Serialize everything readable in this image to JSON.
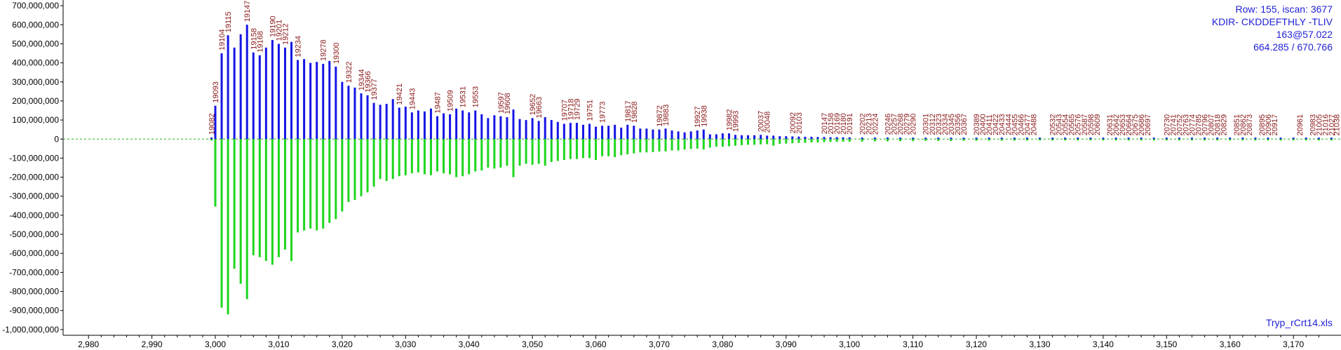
{
  "chart_data": {
    "type": "bar",
    "x_range": [
      2976,
      3177.5
    ],
    "y_range": [
      -1030000000,
      730000000
    ],
    "y_ticks": [
      700000000,
      600000000,
      500000000,
      400000000,
      300000000,
      200000000,
      100000000,
      0,
      -100000000,
      -200000000,
      -300000000,
      -400000000,
      -500000000,
      -600000000,
      -700000000,
      -800000000,
      -900000000,
      -1000000000
    ],
    "y_tick_labels": [
      "700,000,000",
      "600,000,000",
      "500,000,000",
      "400,000,000",
      "300,000,000",
      "200,000,000",
      "100,000,000",
      "0",
      "-100,000,000",
      "-200,000,000",
      "-300,000,000",
      "-400,000,000",
      "-500,000,000",
      "-600,000,000",
      "-700,000,000",
      "-800,000,000",
      "-900,000,000",
      "-1,000,000,000"
    ],
    "x_ticks": [
      2980,
      2990,
      3000,
      3010,
      3020,
      3030,
      3040,
      3050,
      3060,
      3070,
      3080,
      3090,
      3100,
      3110,
      3120,
      3130,
      3140,
      3150,
      3160,
      3170
    ],
    "x_tick_labels": [
      "2,980",
      "2,990",
      "3,000",
      "3,010",
      "3,020",
      "3,030",
      "3,040",
      "3,050",
      "3,060",
      "3,070",
      "3,080",
      "3,090",
      "3,100",
      "3,110",
      "3,120",
      "3,130",
      "3,140",
      "3,150",
      "3,160",
      "3,170"
    ],
    "colors": {
      "positive": "#1515e6",
      "negative": "#1ed61e",
      "baseline": "#22b022",
      "labels": "#8b1a1a",
      "info": "#1f1fd6"
    },
    "grid": false,
    "series": [
      {
        "name": "",
        "x": [
          2999.4,
          3000,
          3001,
          3002,
          3003,
          3004,
          3005,
          3006,
          3007,
          3008,
          3009,
          3010,
          3011,
          3012,
          3013,
          3014,
          3015,
          3016,
          3017,
          3018,
          3019,
          3020,
          3021,
          3022,
          3023,
          3024,
          3025,
          3026,
          3027,
          3028,
          3029,
          3030,
          3031,
          3032,
          3033,
          3034,
          3035,
          3036,
          3037,
          3038,
          3039,
          3040,
          3041,
          3042,
          3043,
          3044,
          3045,
          3046,
          3047,
          3048,
          3049,
          3050,
          3051,
          3052,
          3053,
          3054,
          3055,
          3056,
          3057,
          3058,
          3059,
          3060,
          3061,
          3062,
          3063,
          3064,
          3065,
          3066,
          3067,
          3068,
          3069,
          3070,
          3071,
          3072,
          3073,
          3074,
          3075,
          3076,
          3077,
          3078,
          3079,
          3080,
          3081,
          3082,
          3083,
          3084,
          3085,
          3086,
          3087,
          3088,
          3089,
          3090,
          3091,
          3092,
          3093,
          3094,
          3095,
          3096,
          3097,
          3098,
          3099,
          3100,
          3102,
          3104,
          3106,
          3108,
          3110,
          3112,
          3114,
          3116,
          3118,
          3120,
          3122,
          3124,
          3126,
          3128,
          3130,
          3132,
          3134,
          3136,
          3138,
          3140,
          3142,
          3144,
          3146,
          3148,
          3150,
          3152,
          3154,
          3156,
          3158,
          3160,
          3162,
          3164,
          3166,
          3168,
          3170,
          3172,
          3174,
          3176
        ],
        "y_pos": [
          8000000,
          175000000,
          450000000,
          545000000,
          480000000,
          550000000,
          600000000,
          455000000,
          440000000,
          480000000,
          520000000,
          500000000,
          480000000,
          510000000,
          415000000,
          420000000,
          400000000,
          405000000,
          395000000,
          410000000,
          380000000,
          300000000,
          280000000,
          270000000,
          240000000,
          230000000,
          190000000,
          180000000,
          185000000,
          210000000,
          165000000,
          170000000,
          140000000,
          150000000,
          145000000,
          160000000,
          120000000,
          135000000,
          130000000,
          160000000,
          150000000,
          140000000,
          150000000,
          130000000,
          110000000,
          125000000,
          120000000,
          115000000,
          155000000,
          105000000,
          100000000,
          110000000,
          95000000,
          115000000,
          100000000,
          90000000,
          80000000,
          85000000,
          85000000,
          75000000,
          80000000,
          65000000,
          70000000,
          70000000,
          75000000,
          60000000,
          75000000,
          70000000,
          55000000,
          55000000,
          50000000,
          50000000,
          55000000,
          45000000,
          40000000,
          35000000,
          40000000,
          45000000,
          50000000,
          25000000,
          25000000,
          30000000,
          30000000,
          22000000,
          20000000,
          20000000,
          20000000,
          22000000,
          18000000,
          18000000,
          15000000,
          15000000,
          14000000,
          13000000,
          12000000,
          12000000,
          11000000,
          11000000,
          10000000,
          10000000,
          9000000,
          9000000,
          8000000,
          8000000,
          8000000,
          7000000,
          7000000,
          7000000,
          6000000,
          6000000,
          6000000,
          6000000,
          5000000,
          5000000,
          5000000,
          5000000,
          4000000,
          4000000,
          4000000,
          4000000,
          4000000,
          4000000,
          3000000,
          3000000,
          3000000,
          3000000,
          3000000,
          3000000,
          3000000,
          3000000,
          3000000,
          3000000,
          3000000,
          3000000,
          3000000,
          3000000,
          3000000,
          3000000,
          3000000,
          3000000
        ],
        "y_neg": [
          -8000000,
          -355000000,
          -885000000,
          -920000000,
          -680000000,
          -760000000,
          -840000000,
          -610000000,
          -620000000,
          -640000000,
          -660000000,
          -620000000,
          -580000000,
          -640000000,
          -490000000,
          -480000000,
          -470000000,
          -480000000,
          -470000000,
          -440000000,
          -420000000,
          -380000000,
          -330000000,
          -320000000,
          -300000000,
          -280000000,
          -250000000,
          -210000000,
          -220000000,
          -210000000,
          -195000000,
          -190000000,
          -180000000,
          -175000000,
          -185000000,
          -190000000,
          -170000000,
          -180000000,
          -185000000,
          -200000000,
          -195000000,
          -185000000,
          -170000000,
          -165000000,
          -150000000,
          -155000000,
          -150000000,
          -140000000,
          -200000000,
          -140000000,
          -130000000,
          -135000000,
          -130000000,
          -140000000,
          -120000000,
          -115000000,
          -110000000,
          -105000000,
          -105000000,
          -100000000,
          -100000000,
          -110000000,
          -90000000,
          -90000000,
          -95000000,
          -85000000,
          -80000000,
          -75000000,
          -70000000,
          -70000000,
          -68000000,
          -65000000,
          -65000000,
          -60000000,
          -60000000,
          -55000000,
          -52000000,
          -50000000,
          -55000000,
          -45000000,
          -40000000,
          -40000000,
          -38000000,
          -35000000,
          -32000000,
          -30000000,
          -30000000,
          -28000000,
          -27000000,
          -35000000,
          -25000000,
          -24000000,
          -22000000,
          -20000000,
          -20000000,
          -18000000,
          -18000000,
          -16000000,
          -15000000,
          -15000000,
          -14000000,
          -14000000,
          -13000000,
          -12000000,
          -12000000,
          -11000000,
          -11000000,
          -10000000,
          -10000000,
          -10000000,
          -9000000,
          -9000000,
          -8000000,
          -8000000,
          -8000000,
          -8000000,
          -7000000,
          -7000000,
          -7000000,
          -7000000,
          -6000000,
          -6000000,
          -6000000,
          -6000000,
          -6000000,
          -5000000,
          -5000000,
          -5000000,
          -5000000,
          -5000000,
          -5000000,
          -5000000,
          -5000000,
          -5000000,
          -5000000,
          -5000000,
          -4000000,
          -4000000,
          -4000000,
          -4000000
        ]
      }
    ],
    "peak_labels": [
      {
        "x": 2999.4,
        "y": 8000000,
        "text": "19082"
      },
      {
        "x": 3000,
        "y": 175000000,
        "text": "19093"
      },
      {
        "x": 3001,
        "y": 450000000,
        "text": "19104"
      },
      {
        "x": 3002,
        "y": 545000000,
        "text": "19115"
      },
      {
        "x": 3005,
        "y": 600000000,
        "text": "19147"
      },
      {
        "x": 3006,
        "y": 455000000,
        "text": "19158"
      },
      {
        "x": 3007,
        "y": 440000000,
        "text": "19168"
      },
      {
        "x": 3009,
        "y": 520000000,
        "text": "19190"
      },
      {
        "x": 3010,
        "y": 500000000,
        "text": "19201"
      },
      {
        "x": 3011,
        "y": 480000000,
        "text": "19212"
      },
      {
        "x": 3013,
        "y": 415000000,
        "text": "19234"
      },
      {
        "x": 3017,
        "y": 395000000,
        "text": "19278"
      },
      {
        "x": 3019,
        "y": 380000000,
        "text": "19300"
      },
      {
        "x": 3021,
        "y": 280000000,
        "text": "19322"
      },
      {
        "x": 3023,
        "y": 240000000,
        "text": "19344"
      },
      {
        "x": 3024,
        "y": 230000000,
        "text": "19366"
      },
      {
        "x": 3025,
        "y": 190000000,
        "text": "19377"
      },
      {
        "x": 3029,
        "y": 165000000,
        "text": "19421"
      },
      {
        "x": 3031,
        "y": 140000000,
        "text": "19443"
      },
      {
        "x": 3035,
        "y": 120000000,
        "text": "19487"
      },
      {
        "x": 3037,
        "y": 130000000,
        "text": "19509"
      },
      {
        "x": 3039,
        "y": 150000000,
        "text": "19531"
      },
      {
        "x": 3041,
        "y": 150000000,
        "text": "19553"
      },
      {
        "x": 3045,
        "y": 120000000,
        "text": "19597"
      },
      {
        "x": 3046,
        "y": 115000000,
        "text": "19608"
      },
      {
        "x": 3050,
        "y": 110000000,
        "text": "19652"
      },
      {
        "x": 3051,
        "y": 95000000,
        "text": "19663"
      },
      {
        "x": 3055,
        "y": 80000000,
        "text": "19707"
      },
      {
        "x": 3056,
        "y": 85000000,
        "text": "19718"
      },
      {
        "x": 3057,
        "y": 85000000,
        "text": "19729"
      },
      {
        "x": 3059,
        "y": 80000000,
        "text": "19751"
      },
      {
        "x": 3061,
        "y": 70000000,
        "text": "19773"
      },
      {
        "x": 3065,
        "y": 75000000,
        "text": "19817"
      },
      {
        "x": 3066,
        "y": 70000000,
        "text": "19828"
      },
      {
        "x": 3070,
        "y": 50000000,
        "text": "19872"
      },
      {
        "x": 3071,
        "y": 55000000,
        "text": "19883"
      },
      {
        "x": 3076,
        "y": 45000000,
        "text": "19927"
      },
      {
        "x": 3077,
        "y": 50000000,
        "text": "19938"
      },
      {
        "x": 3081,
        "y": 30000000,
        "text": "19982"
      },
      {
        "x": 3082,
        "y": 22000000,
        "text": "19993"
      },
      {
        "x": 3086,
        "y": 22000000,
        "text": "20037"
      },
      {
        "x": 3087,
        "y": 18000000,
        "text": "20048"
      },
      {
        "x": 3091,
        "y": 14000000,
        "text": "20092"
      },
      {
        "x": 3092,
        "y": 13000000,
        "text": "20103"
      },
      {
        "x": 3096,
        "y": 11000000,
        "text": "20147"
      },
      {
        "x": 3097,
        "y": 10000000,
        "text": "20158"
      },
      {
        "x": 3098,
        "y": 10000000,
        "text": "20169"
      },
      {
        "x": 3099,
        "y": 9000000,
        "text": "20180"
      },
      {
        "x": 3100,
        "y": 9000000,
        "text": "20191"
      },
      {
        "x": 3102,
        "y": 8000000,
        "text": "20202"
      },
      {
        "x": 3103,
        "y": 8000000,
        "text": "20213"
      },
      {
        "x": 3104,
        "y": 8000000,
        "text": "20224"
      },
      {
        "x": 3106,
        "y": 7000000,
        "text": "20246"
      },
      {
        "x": 3107,
        "y": 7000000,
        "text": "20257"
      },
      {
        "x": 3108,
        "y": 7000000,
        "text": "20268"
      },
      {
        "x": 3109,
        "y": 7000000,
        "text": "20279"
      },
      {
        "x": 3110,
        "y": 7000000,
        "text": "20290"
      },
      {
        "x": 3112,
        "y": 7000000,
        "text": "20301"
      },
      {
        "x": 3113,
        "y": 6000000,
        "text": "20312"
      },
      {
        "x": 3114,
        "y": 6000000,
        "text": "20323"
      },
      {
        "x": 3115,
        "y": 6000000,
        "text": "20334"
      },
      {
        "x": 3116,
        "y": 6000000,
        "text": "20345"
      },
      {
        "x": 3117,
        "y": 6000000,
        "text": "20356"
      },
      {
        "x": 3118,
        "y": 6000000,
        "text": "20367"
      },
      {
        "x": 3120,
        "y": 5000000,
        "text": "20389"
      },
      {
        "x": 3121,
        "y": 5000000,
        "text": "20400"
      },
      {
        "x": 3122,
        "y": 5000000,
        "text": "20411"
      },
      {
        "x": 3123,
        "y": 5000000,
        "text": "20422"
      },
      {
        "x": 3124,
        "y": 5000000,
        "text": "20433"
      },
      {
        "x": 3125,
        "y": 5000000,
        "text": "20444"
      },
      {
        "x": 3126,
        "y": 4000000,
        "text": "20455"
      },
      {
        "x": 3127,
        "y": 4000000,
        "text": "20466"
      },
      {
        "x": 3128,
        "y": 4000000,
        "text": "20477"
      },
      {
        "x": 3129,
        "y": 4000000,
        "text": "20488"
      },
      {
        "x": 3132,
        "y": 4000000,
        "text": "20532"
      },
      {
        "x": 3133,
        "y": 4000000,
        "text": "20543"
      },
      {
        "x": 3134,
        "y": 4000000,
        "text": "20554"
      },
      {
        "x": 3135,
        "y": 4000000,
        "text": "20565"
      },
      {
        "x": 3136,
        "y": 4000000,
        "text": "20576"
      },
      {
        "x": 3137,
        "y": 4000000,
        "text": "20587"
      },
      {
        "x": 3138,
        "y": 4000000,
        "text": "20598"
      },
      {
        "x": 3139,
        "y": 4000000,
        "text": "20609"
      },
      {
        "x": 3141,
        "y": 3000000,
        "text": "20631"
      },
      {
        "x": 3142,
        "y": 3000000,
        "text": "20642"
      },
      {
        "x": 3143,
        "y": 3000000,
        "text": "20653"
      },
      {
        "x": 3144,
        "y": 3000000,
        "text": "20664"
      },
      {
        "x": 3145,
        "y": 3000000,
        "text": "20675"
      },
      {
        "x": 3146,
        "y": 3000000,
        "text": "20686"
      },
      {
        "x": 3147,
        "y": 3000000,
        "text": "20697"
      },
      {
        "x": 3150,
        "y": 3000000,
        "text": "20730"
      },
      {
        "x": 3151,
        "y": 3000000,
        "text": "20741"
      },
      {
        "x": 3152,
        "y": 3000000,
        "text": "20752"
      },
      {
        "x": 3153,
        "y": 3000000,
        "text": "20763"
      },
      {
        "x": 3154,
        "y": 3000000,
        "text": "20774"
      },
      {
        "x": 3155,
        "y": 3000000,
        "text": "20785"
      },
      {
        "x": 3156,
        "y": 3000000,
        "text": "20796"
      },
      {
        "x": 3157,
        "y": 3000000,
        "text": "20807"
      },
      {
        "x": 3158,
        "y": 3000000,
        "text": "20818"
      },
      {
        "x": 3159,
        "y": 3000000,
        "text": "20829"
      },
      {
        "x": 3161,
        "y": 3000000,
        "text": "20851"
      },
      {
        "x": 3162,
        "y": 3000000,
        "text": "20862"
      },
      {
        "x": 3163,
        "y": 3000000,
        "text": "20873"
      },
      {
        "x": 3165,
        "y": 3000000,
        "text": "20895"
      },
      {
        "x": 3166,
        "y": 3000000,
        "text": "20906"
      },
      {
        "x": 3167,
        "y": 3000000,
        "text": "20917"
      },
      {
        "x": 3171,
        "y": 3000000,
        "text": "20961"
      },
      {
        "x": 3173,
        "y": 3000000,
        "text": "20983"
      },
      {
        "x": 3174,
        "y": 3000000,
        "text": "21005"
      },
      {
        "x": 3175,
        "y": 3000000,
        "text": "21016"
      },
      {
        "x": 3176,
        "y": 3000000,
        "text": "21027"
      },
      {
        "x": 3176.8,
        "y": 3000000,
        "text": "21038"
      }
    ]
  },
  "info_panel": {
    "row_scan": "Row: 155, iscan: 3677",
    "peptide": "KDIR- CKDDEFTHLY -TLIV",
    "modification": "163@57.022",
    "mass_ratio": "664.285 / 670.766"
  },
  "footer": {
    "filename": "Tryp_rCrt14.xls"
  }
}
